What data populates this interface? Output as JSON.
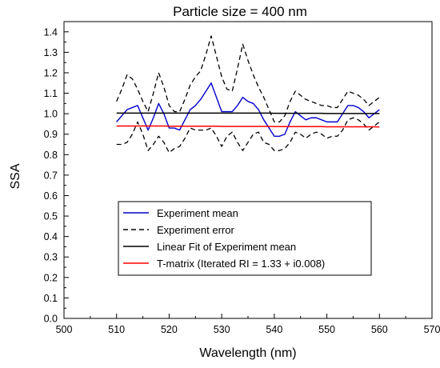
{
  "chart_data": {
    "type": "line",
    "title": "Particle size = 400 nm",
    "xlabel": "Wavelength (nm)",
    "ylabel": "SSA",
    "xlim": [
      500,
      570
    ],
    "ylim": [
      0.0,
      1.45
    ],
    "xticks": [
      500,
      510,
      520,
      530,
      540,
      550,
      560,
      570
    ],
    "yticks": [
      0.0,
      0.1,
      0.2,
      0.3,
      0.4,
      0.5,
      0.6,
      0.7,
      0.8,
      0.9,
      1.0,
      1.1,
      1.2,
      1.3,
      1.4
    ],
    "grid": false,
    "legend_position": "lower-center",
    "x": [
      510,
      511,
      512,
      513,
      514,
      515,
      516,
      517,
      518,
      519,
      520,
      521,
      522,
      523,
      524,
      525,
      526,
      527,
      528,
      529,
      530,
      531,
      532,
      533,
      534,
      535,
      536,
      537,
      538,
      539,
      540,
      541,
      542,
      543,
      544,
      545,
      546,
      547,
      548,
      549,
      550,
      551,
      552,
      553,
      554,
      555,
      556,
      557,
      558,
      559,
      560
    ],
    "series": [
      {
        "name": "Experiment mean",
        "color": "#0000cc",
        "style": "solid",
        "values": [
          0.96,
          0.99,
          1.02,
          1.03,
          1.04,
          0.98,
          0.92,
          0.98,
          1.05,
          1.0,
          0.93,
          0.93,
          0.92,
          0.97,
          1.02,
          1.04,
          1.07,
          1.11,
          1.15,
          1.08,
          1.01,
          1.01,
          1.01,
          1.04,
          1.08,
          1.06,
          1.05,
          1.02,
          0.97,
          0.93,
          0.89,
          0.89,
          0.9,
          0.96,
          1.01,
          0.99,
          0.97,
          0.98,
          0.98,
          0.97,
          0.96,
          0.96,
          0.96,
          1.0,
          1.04,
          1.04,
          1.03,
          1.01,
          0.98,
          1.0,
          1.02
        ]
      },
      {
        "name": "Experiment error",
        "color": "#000000",
        "style": "dashed",
        "values": [
          1.06,
          1.12,
          1.19,
          1.17,
          1.12,
          1.06,
          1.01,
          1.1,
          1.2,
          1.13,
          1.04,
          1.01,
          1.01,
          1.07,
          1.14,
          1.18,
          1.21,
          1.29,
          1.38,
          1.28,
          1.18,
          1.12,
          1.11,
          1.22,
          1.34,
          1.26,
          1.19,
          1.13,
          1.08,
          1.02,
          0.96,
          0.96,
          0.99,
          1.06,
          1.11,
          1.09,
          1.07,
          1.06,
          1.05,
          1.04,
          1.04,
          1.03,
          1.03,
          1.07,
          1.11,
          1.1,
          1.09,
          1.07,
          1.04,
          1.06,
          1.08
        ]
      },
      {
        "name": "Experiment error lower",
        "color": "#000000",
        "style": "dashed",
        "values": [
          0.85,
          0.85,
          0.86,
          0.9,
          0.96,
          0.9,
          0.82,
          0.85,
          0.89,
          0.86,
          0.81,
          0.83,
          0.84,
          0.88,
          0.93,
          0.92,
          0.92,
          0.92,
          0.93,
          0.89,
          0.84,
          0.89,
          0.91,
          0.86,
          0.82,
          0.86,
          0.9,
          0.91,
          0.86,
          0.85,
          0.82,
          0.82,
          0.83,
          0.86,
          0.91,
          0.9,
          0.88,
          0.9,
          0.91,
          0.9,
          0.88,
          0.89,
          0.89,
          0.92,
          0.97,
          0.98,
          0.97,
          0.95,
          0.92,
          0.94,
          0.96
        ]
      },
      {
        "name": "Linear Fit of Experiment mean",
        "color": "#000000",
        "style": "solid",
        "values": [
          1.003,
          1.003,
          1.003,
          1.003,
          1.003,
          1.003,
          1.003,
          1.003,
          1.003,
          1.003,
          1.003,
          1.003,
          1.003,
          1.003,
          1.003,
          1.003,
          1.003,
          1.003,
          1.003,
          1.003,
          1.003,
          1.003,
          1.003,
          1.003,
          1.003,
          1.003,
          1.003,
          1.003,
          1.003,
          1.003,
          1.002,
          1.002,
          1.002,
          1.002,
          1.002,
          1.002,
          1.002,
          1.002,
          1.002,
          1.002,
          1.001,
          1.001,
          1.001,
          1.001,
          1.001,
          1.001,
          1.001,
          1.001,
          1.001,
          1.001,
          1.001
        ]
      },
      {
        "name": "T-matrix (Iterated RI = 1.33 + i0.008)",
        "color": "#ff0000",
        "style": "solid",
        "values": [
          0.94,
          0.94,
          0.94,
          0.94,
          0.94,
          0.94,
          0.94,
          0.94,
          0.94,
          0.94,
          0.939,
          0.939,
          0.939,
          0.939,
          0.939,
          0.939,
          0.939,
          0.939,
          0.939,
          0.939,
          0.938,
          0.938,
          0.938,
          0.938,
          0.938,
          0.938,
          0.938,
          0.938,
          0.938,
          0.938,
          0.937,
          0.937,
          0.937,
          0.937,
          0.937,
          0.937,
          0.937,
          0.937,
          0.937,
          0.937,
          0.936,
          0.936,
          0.936,
          0.936,
          0.936,
          0.936,
          0.936,
          0.936,
          0.936,
          0.936,
          0.935
        ]
      }
    ],
    "legend": [
      {
        "label": "Experiment mean",
        "color": "#0000cc",
        "style": "solid"
      },
      {
        "label": "Experiment error",
        "color": "#000000",
        "style": "dashed"
      },
      {
        "label": "Linear Fit of Experiment mean",
        "color": "#000000",
        "style": "solid"
      },
      {
        "label": "T-matrix (Iterated RI = 1.33 + i0.008)",
        "color": "#ff0000",
        "style": "solid"
      }
    ]
  }
}
